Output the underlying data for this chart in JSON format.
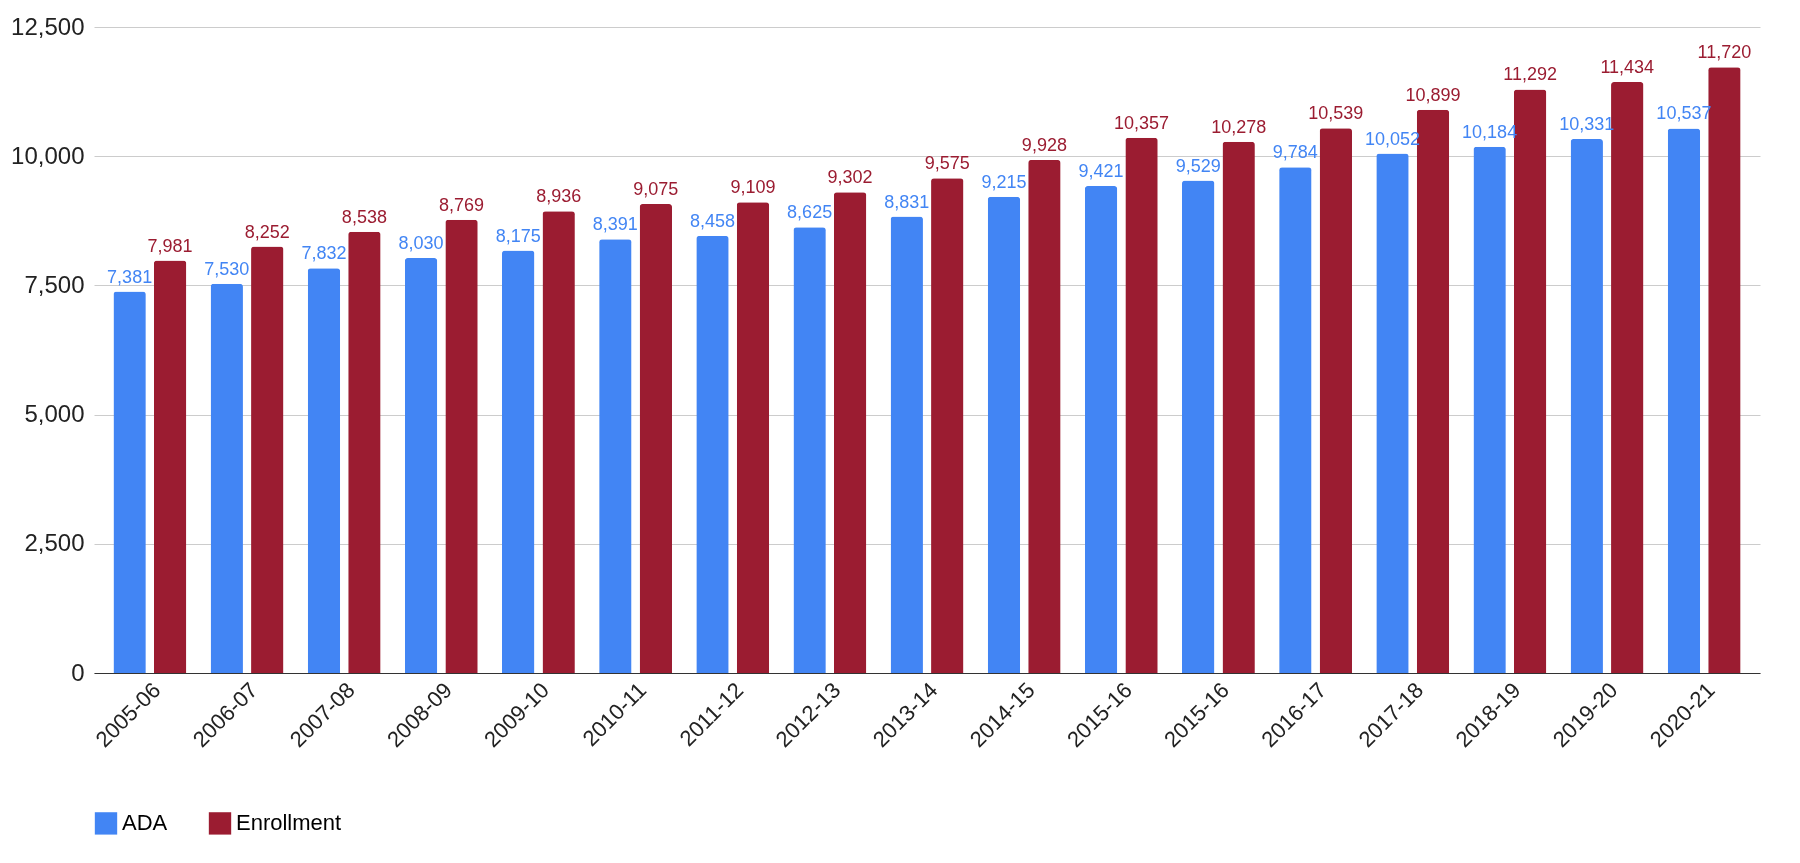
{
  "chart_data": {
    "type": "bar",
    "categories": [
      "2005-06",
      "2006-07",
      "2007-08",
      "2008-09",
      "2009-10",
      "2010-11",
      "2011-12",
      "2012-13",
      "2013-14",
      "2014-15",
      "2015-16",
      "2015-16",
      "2016-17",
      "2017-18",
      "2018-19",
      "2019-20",
      "2020-21"
    ],
    "series": [
      {
        "name": "ADA",
        "color": "#4285f4",
        "values": [
          7381,
          7530,
          7832,
          8030,
          8175,
          8391,
          8458,
          8625,
          8831,
          9215,
          9421,
          9529,
          9784,
          10052,
          10184,
          10331,
          10537
        ],
        "value_labels": [
          "7,381",
          "7,530",
          "7,832",
          "8,030",
          "8,175",
          "8,391",
          "8,458",
          "8,625",
          "8,831",
          "9,215",
          "9,421",
          "9,529",
          "9,784",
          "10,052",
          "10,184",
          "10,331",
          "10,537"
        ]
      },
      {
        "name": "Enrollment",
        "color": "#9b1c31",
        "values": [
          7981,
          8252,
          8538,
          8769,
          8936,
          9075,
          9109,
          9302,
          9575,
          9928,
          10357,
          10278,
          10539,
          10899,
          11292,
          11434,
          11720
        ],
        "value_labels": [
          "7,981",
          "8,252",
          "8,538",
          "8,769",
          "8,936",
          "9,075",
          "9,109",
          "9,302",
          "9,575",
          "9,928",
          "10,357",
          "10,278",
          "10,539",
          "10,899",
          "11,292",
          "11,434",
          "11,720"
        ]
      }
    ],
    "ylim": [
      0,
      12500
    ],
    "yticks": [
      0,
      {
        "value": 2500,
        "label": "2,500"
      },
      {
        "value": 5000,
        "label": "5,000"
      },
      {
        "value": 7500,
        "label": "7,500"
      },
      {
        "value": 10000,
        "label": "10,000"
      },
      {
        "value": 12500,
        "label": "12,500"
      }
    ],
    "grid": "y",
    "legend": "bottom"
  }
}
